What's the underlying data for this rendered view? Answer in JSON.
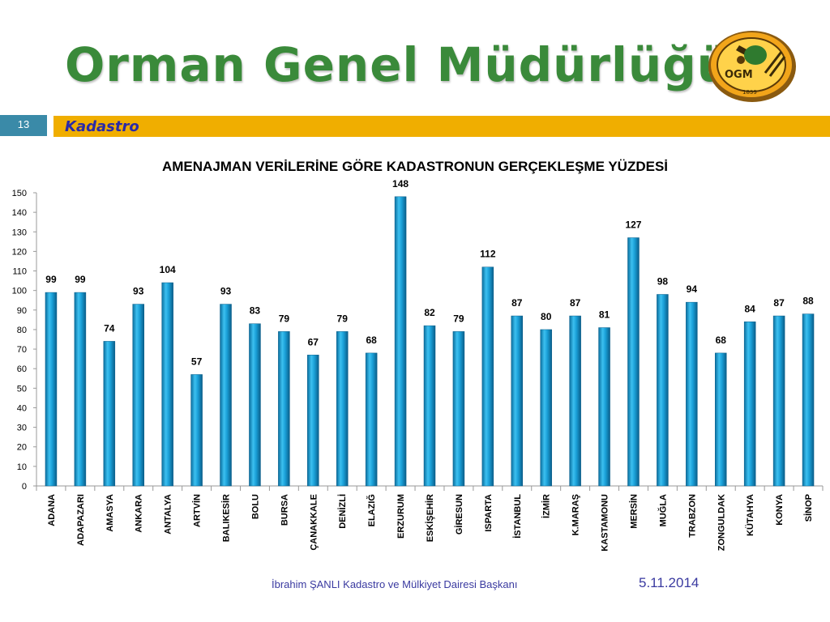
{
  "slide": {
    "title": "Orman Genel Müdürlüğü",
    "number": "13",
    "section": "Kadastro",
    "logo_text": "OGM",
    "logo_year": "1839",
    "footer_left": "İbrahim ŞANLI Kadastro ve Mülkiyet Dairesi Başkanı",
    "footer_right": "5.11.2014"
  },
  "colors": {
    "title_green": "#3a8a3a",
    "section_bar": "#f0ae00",
    "slide_number_bg": "#3a8aa8",
    "bar_fill": "#1aa0d8"
  },
  "chart_data": {
    "type": "bar",
    "title": "AMENAJMAN VERİLERİNE GÖRE KADASTRONUN GERÇEKLEŞME YÜZDESİ",
    "xlabel": "",
    "ylabel": "",
    "ylim": [
      0,
      150
    ],
    "yticks": [
      0,
      10,
      20,
      30,
      40,
      50,
      60,
      70,
      80,
      90,
      100,
      110,
      120,
      130,
      140,
      150
    ],
    "grid": false,
    "categories": [
      "ADANA",
      "ADAPAZARI",
      "AMASYA",
      "ANKARA",
      "ANTALYA",
      "ARTVİN",
      "BALIKESİR",
      "BOLU",
      "BURSA",
      "ÇANAKKALE",
      "DENİZLİ",
      "ELAZIĞ",
      "ERZURUM",
      "ESKİŞEHİR",
      "GİRESUN",
      "ISPARTA",
      "İSTANBUL",
      "İZMİR",
      "K.MARAŞ",
      "KASTAMONU",
      "MERSİN",
      "MUĞLA",
      "TRABZON",
      "ZONGULDAK",
      "KÜTAHYA",
      "KONYA",
      "SİNOP"
    ],
    "values": [
      99,
      99,
      74,
      93,
      104,
      57,
      93,
      83,
      79,
      67,
      79,
      68,
      148,
      82,
      79,
      112,
      87,
      80,
      87,
      81,
      127,
      98,
      94,
      68,
      84,
      87,
      88
    ]
  }
}
